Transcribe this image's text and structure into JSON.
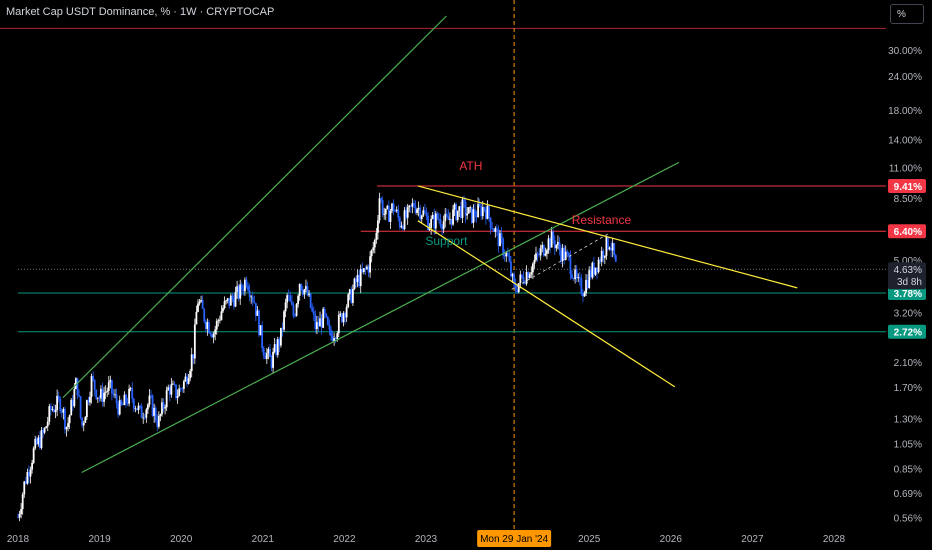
{
  "header": {
    "title": "Market Cap USDT Dominance, % · 1W · CRYPTOCAP",
    "unit_button": "%"
  },
  "colors": {
    "background": "#000000",
    "up_candle": "#ffffff",
    "down_candle": "#2962ff",
    "channel": "#4caf50",
    "wedge": "#ffeb3b",
    "resistance": "#f23645",
    "support_line": "#089981",
    "crosshair": "#ff9800",
    "axis_text": "#b2b5be"
  },
  "chart_data": {
    "type": "candlestick",
    "title": "Market Cap USDT Dominance, % · 1W · CRYPTOCAP",
    "scale": "log",
    "ylim": [
      0.52,
      40
    ],
    "xlim": [
      2018.0,
      2028.3
    ],
    "y_ticks": [
      "30.00%",
      "24.00%",
      "18.00%",
      "14.00%",
      "11.00%",
      "8.50%",
      "6.40%",
      "5.00%",
      "3.78%",
      "3.20%",
      "2.72%",
      "2.10%",
      "1.70%",
      "1.30%",
      "1.05%",
      "0.85%",
      "0.69%",
      "0.56%"
    ],
    "y_tick_values": [
      30,
      24,
      18,
      14,
      11,
      8.5,
      6.4,
      5.0,
      3.78,
      3.2,
      2.72,
      2.1,
      1.7,
      1.3,
      1.05,
      0.85,
      0.69,
      0.56
    ],
    "x_ticks": [
      "2018",
      "2019",
      "2020",
      "2021",
      "2022",
      "2023",
      "2024",
      "2025",
      "2026",
      "2027",
      "2028"
    ],
    "x_tick_values": [
      2018,
      2019,
      2020,
      2021,
      2022,
      2023,
      2024,
      2025,
      2026,
      2027,
      2028
    ],
    "price_path": [
      [
        2018.0,
        0.56
      ],
      [
        2018.08,
        0.75
      ],
      [
        2018.2,
        1.0
      ],
      [
        2018.32,
        1.15
      ],
      [
        2018.4,
        1.4
      ],
      [
        2018.52,
        1.5
      ],
      [
        2018.6,
        1.2
      ],
      [
        2018.72,
        1.8
      ],
      [
        2018.78,
        1.2
      ],
      [
        2018.9,
        1.8
      ],
      [
        2019.0,
        1.55
      ],
      [
        2019.12,
        1.7
      ],
      [
        2019.25,
        1.4
      ],
      [
        2019.38,
        1.6
      ],
      [
        2019.5,
        1.35
      ],
      [
        2019.62,
        1.5
      ],
      [
        2019.72,
        1.25
      ],
      [
        2019.85,
        1.7
      ],
      [
        2019.95,
        1.6
      ],
      [
        2020.05,
        1.8
      ],
      [
        2020.15,
        2.3
      ],
      [
        2020.2,
        3.6
      ],
      [
        2020.3,
        3.0
      ],
      [
        2020.4,
        2.7
      ],
      [
        2020.5,
        3.3
      ],
      [
        2020.62,
        3.6
      ],
      [
        2020.72,
        3.8
      ],
      [
        2020.8,
        4.3
      ],
      [
        2020.9,
        3.5
      ],
      [
        2021.0,
        2.4
      ],
      [
        2021.1,
        2.1
      ],
      [
        2021.22,
        2.6
      ],
      [
        2021.3,
        3.7
      ],
      [
        2021.38,
        3.1
      ],
      [
        2021.45,
        4.2
      ],
      [
        2021.55,
        3.7
      ],
      [
        2021.65,
        2.8
      ],
      [
        2021.75,
        3.1
      ],
      [
        2021.82,
        2.6
      ],
      [
        2021.9,
        2.8
      ],
      [
        2022.0,
        3.3
      ],
      [
        2022.08,
        3.7
      ],
      [
        2022.15,
        4.2
      ],
      [
        2022.22,
        4.4
      ],
      [
        2022.3,
        4.8
      ],
      [
        2022.38,
        6.0
      ],
      [
        2022.43,
        8.6
      ],
      [
        2022.5,
        7.2
      ],
      [
        2022.6,
        7.9
      ],
      [
        2022.68,
        6.9
      ],
      [
        2022.78,
        7.3
      ],
      [
        2022.85,
        8.1
      ],
      [
        2022.95,
        7.6
      ],
      [
        2023.05,
        6.8
      ],
      [
        2023.15,
        7.2
      ],
      [
        2023.25,
        6.9
      ],
      [
        2023.35,
        7.5
      ],
      [
        2023.45,
        7.8
      ],
      [
        2023.55,
        7.3
      ],
      [
        2023.65,
        7.6
      ],
      [
        2023.72,
        7.9
      ],
      [
        2023.8,
        6.9
      ],
      [
        2023.9,
        5.9
      ],
      [
        2024.0,
        5.1
      ],
      [
        2024.08,
        3.9
      ],
      [
        2024.18,
        4.3
      ],
      [
        2024.28,
        4.7
      ],
      [
        2024.38,
        5.2
      ],
      [
        2024.48,
        5.8
      ],
      [
        2024.55,
        6.0
      ],
      [
        2024.65,
        5.4
      ],
      [
        2024.75,
        5.0
      ],
      [
        2024.85,
        4.1
      ],
      [
        2024.92,
        3.9
      ],
      [
        2025.0,
        4.4
      ],
      [
        2025.1,
        4.9
      ],
      [
        2025.18,
        5.5
      ],
      [
        2025.25,
        5.9
      ],
      [
        2025.3,
        5.2
      ],
      [
        2025.33,
        4.63
      ]
    ],
    "lines": [
      {
        "name": "channel-upper",
        "style": "channel",
        "points": [
          [
            2018.55,
            1.55
          ],
          [
            2023.25,
            40
          ]
        ]
      },
      {
        "name": "channel-lower",
        "style": "channel",
        "points": [
          [
            2018.78,
            0.82
          ],
          [
            2026.1,
            11.5
          ]
        ]
      },
      {
        "name": "wedge-upper",
        "style": "wedge",
        "points": [
          [
            2022.9,
            9.41
          ],
          [
            2027.55,
            3.95
          ]
        ]
      },
      {
        "name": "wedge-lower",
        "style": "wedge",
        "points": [
          [
            2022.9,
            7.0
          ],
          [
            2026.05,
            1.7
          ]
        ]
      },
      {
        "name": "mini-trend",
        "style": "dashed-white",
        "points": [
          [
            2024.05,
            3.9
          ],
          [
            2025.25,
            6.3
          ]
        ]
      }
    ],
    "levels": [
      {
        "name": "ath-level",
        "value": 9.41,
        "label": "9.41%",
        "style": "resistance",
        "from": 2022.4,
        "note": "ATH"
      },
      {
        "name": "resistance-level",
        "value": 6.4,
        "label": "6.40%",
        "style": "resistance",
        "from": 2022.2,
        "note": "Resistance"
      },
      {
        "name": "support-level-high",
        "value": 3.78,
        "label": "3.78%",
        "style": "support_line",
        "from": 2018.0
      },
      {
        "name": "support-level-low",
        "value": 2.72,
        "label": "2.72%",
        "style": "support_line",
        "from": 2018.0
      },
      {
        "name": "current-price",
        "value": 4.63,
        "label": "4.63%",
        "style": "dotted",
        "from": 2018.0,
        "note": "3d 8h"
      }
    ],
    "annotations": [
      {
        "name": "ath-annotation",
        "text": "ATH",
        "x": 2023.55,
        "y": 10.8,
        "color": "#f23645"
      },
      {
        "name": "resistance-annotation",
        "text": "Resistance",
        "x": 2025.15,
        "y": 6.8,
        "color": "#f23645"
      },
      {
        "name": "support-annotation",
        "text": "Support",
        "x": 2023.25,
        "y": 5.7,
        "color": "#089981"
      }
    ],
    "crosshair": {
      "x": 2024.08,
      "label": "Mon 29 Jan '24"
    },
    "top_red_line": 36
  }
}
